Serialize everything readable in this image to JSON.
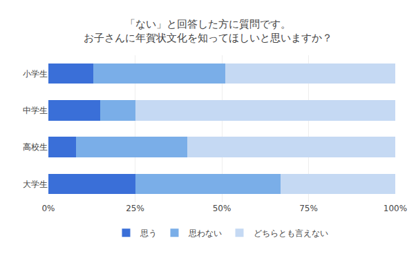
{
  "chart_data": {
    "type": "bar",
    "orientation": "horizontal",
    "stacked": true,
    "title": "「ない」と回答した方に質問です。\nお子さんに年賀状文化を知ってほしいと思いますか？",
    "categories": [
      "小学生",
      "中学生",
      "高校生",
      "大学生"
    ],
    "series": [
      {
        "name": "思う",
        "color": "#3a6fd8",
        "values": [
          13,
          15,
          8,
          25
        ]
      },
      {
        "name": "思わない",
        "color": "#7aaee8",
        "values": [
          38,
          10,
          32,
          42
        ]
      },
      {
        "name": "どちらとも言えない",
        "color": "#c5d9f3",
        "values": [
          49,
          75,
          60,
          33
        ]
      }
    ],
    "xlim": [
      0,
      100
    ],
    "xticks": [
      {
        "value": 0,
        "label": "0%"
      },
      {
        "value": 25,
        "label": "25%"
      },
      {
        "value": 50,
        "label": "50%"
      },
      {
        "value": 75,
        "label": "75%"
      },
      {
        "value": 100,
        "label": "100%"
      }
    ],
    "grid": true,
    "legend": "bottom"
  }
}
